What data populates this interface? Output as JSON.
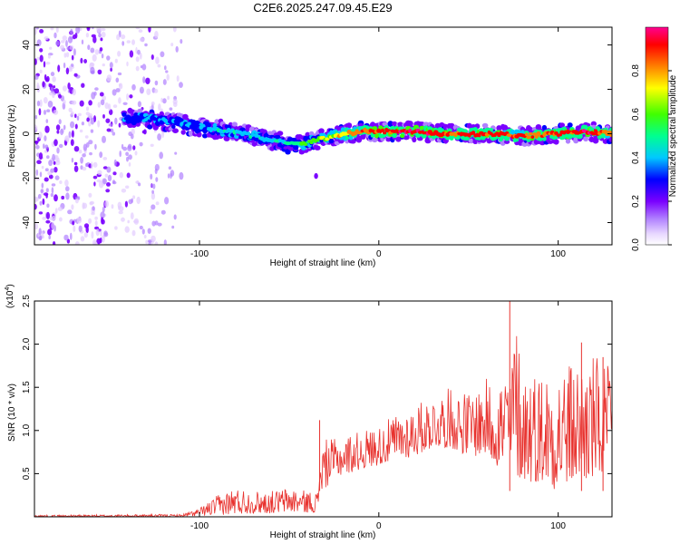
{
  "title": "C2E6.2025.247.09.45.E29",
  "chart_data": [
    {
      "type": "heatmap",
      "name": "spectrogram",
      "xlabel": "Height of straight line (km)",
      "ylabel": "Frequency (Hz)",
      "xlim": [
        -192,
        130
      ],
      "ylim": [
        -50,
        48
      ],
      "x_ticks": [
        -100,
        0,
        100
      ],
      "y_ticks": [
        -40,
        -20,
        0,
        20,
        40
      ],
      "colorbar": {
        "label": "Normalized spectral amplitude",
        "range": [
          0,
          1
        ],
        "ticks": [
          0.0,
          0.2,
          0.4,
          0.6,
          0.8
        ],
        "colors": [
          "#ffffff",
          "#d6b8ff",
          "#8a2be2",
          "#6a00ff",
          "#0000ff",
          "#00c8ff",
          "#00ff80",
          "#40ff00",
          "#ffff00",
          "#ff8000",
          "#ff0000",
          "#ff0080"
        ]
      },
      "ridge": {
        "x": [
          -140,
          -120,
          -100,
          -80,
          -60,
          -45,
          -35,
          -25,
          -10,
          0,
          20,
          40,
          60,
          80,
          100,
          115,
          130
        ],
        "y": [
          7,
          6,
          3,
          1,
          -3,
          -5,
          -3,
          -1,
          1,
          1,
          1,
          0,
          0,
          -1,
          0,
          1,
          0
        ],
        "amplitude": [
          0.25,
          0.3,
          0.3,
          0.4,
          0.35,
          0.5,
          0.55,
          0.65,
          0.8,
          0.85,
          0.9,
          0.85,
          0.85,
          0.8,
          0.85,
          0.9,
          0.8
        ]
      },
      "noise_region_x": [
        -192,
        -110
      ]
    },
    {
      "type": "line",
      "name": "snr",
      "xlabel": "Height of straight line (km)",
      "ylabel": "SNR (10 * v/v)",
      "y_multiplier": "(x10^4)",
      "multiplier_base": "(x10",
      "multiplier_exp": "4",
      "multiplier_close": ")",
      "xlim": [
        -192,
        130
      ],
      "ylim": [
        0,
        2.5
      ],
      "x_ticks": [
        -100,
        0,
        100
      ],
      "y_ticks": [
        0.5,
        1.0,
        1.5,
        2.0,
        2.5
      ],
      "line_color": "#e8322e",
      "envelope": {
        "x": [
          -192,
          -110,
          -100,
          -90,
          -80,
          -70,
          -60,
          -50,
          -40,
          -34,
          -33,
          -25,
          -10,
          0,
          10,
          20,
          30,
          40,
          50,
          60,
          70,
          75,
          80,
          90,
          100,
          110,
          120,
          130
        ],
        "low": [
          0.0,
          0.0,
          0.01,
          0.02,
          0.03,
          0.04,
          0.04,
          0.05,
          0.05,
          0.05,
          0.25,
          0.45,
          0.55,
          0.6,
          0.65,
          0.7,
          0.8,
          0.8,
          0.7,
          0.7,
          0.5,
          0.5,
          0.4,
          0.4,
          0.3,
          0.4,
          0.4,
          0.5
        ],
        "high": [
          0.02,
          0.03,
          0.1,
          0.25,
          0.35,
          0.3,
          0.3,
          0.35,
          0.3,
          0.3,
          0.9,
          0.9,
          1.0,
          1.05,
          1.2,
          1.3,
          1.4,
          1.5,
          1.45,
          1.6,
          1.7,
          2.5,
          1.8,
          1.7,
          1.8,
          1.8,
          1.9,
          1.7
        ]
      },
      "peaks": [
        {
          "x": -33,
          "y": 1.12
        },
        {
          "x": 73,
          "y": 2.5
        },
        {
          "x": 113,
          "y": 2.02
        },
        {
          "x": 125,
          "y": 1.85
        }
      ]
    }
  ]
}
